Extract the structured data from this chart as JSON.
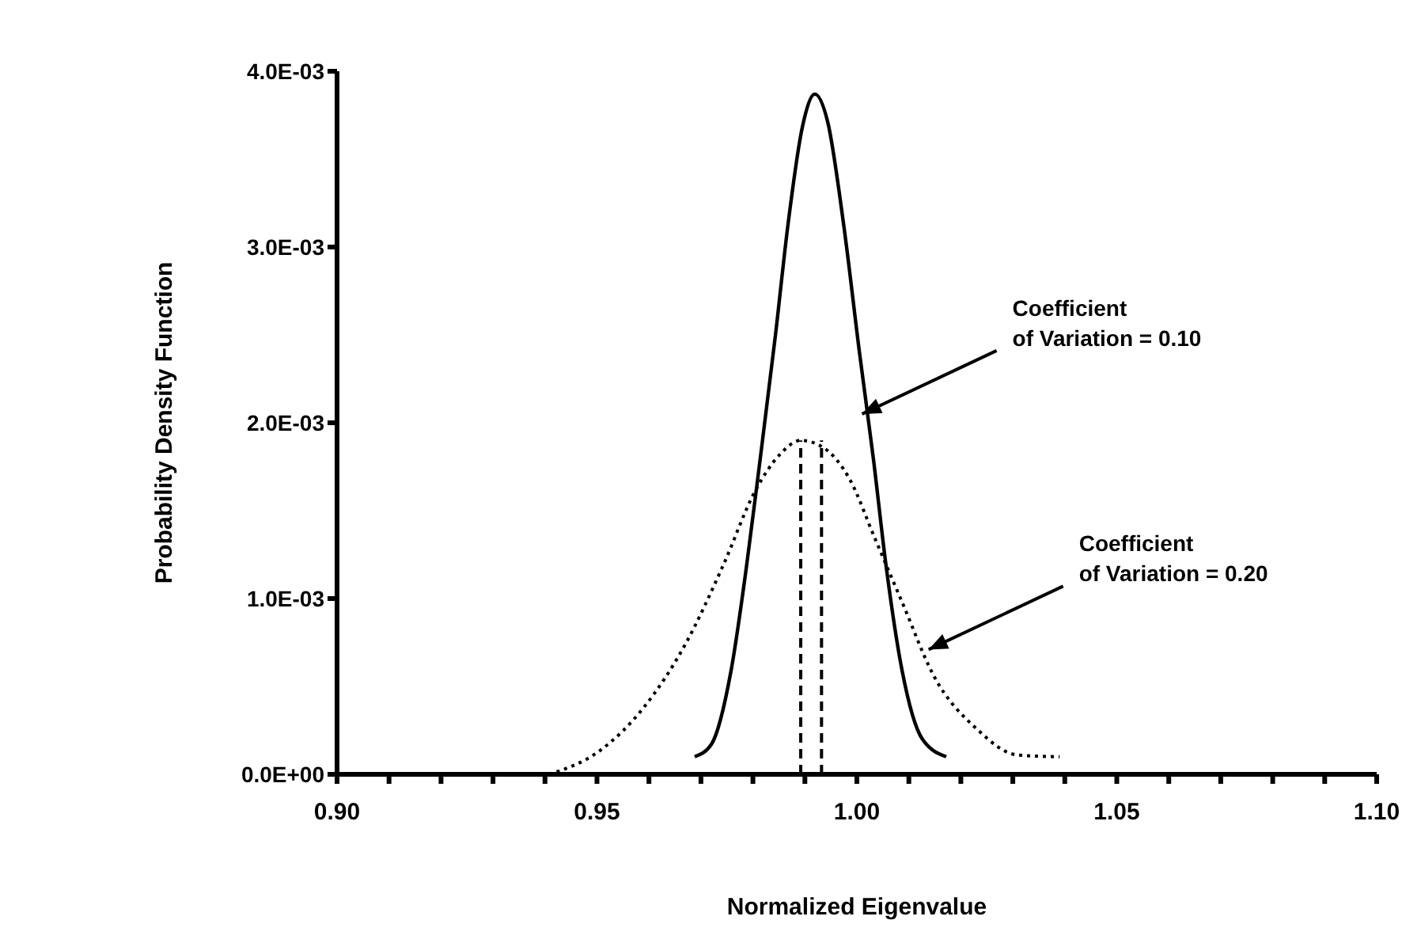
{
  "chart_data": {
    "type": "line",
    "xlabel": "Normalized Eigenvalue",
    "ylabel": "Probability Density Function",
    "xlim": [
      0.9,
      1.1
    ],
    "xticks": [
      {
        "value": 0.9,
        "label": "0.90"
      },
      {
        "value": 0.91,
        "label": null
      },
      {
        "value": 0.92,
        "label": null
      },
      {
        "value": 0.93,
        "label": null
      },
      {
        "value": 0.94,
        "label": null
      },
      {
        "value": 0.95,
        "label": "0.95"
      },
      {
        "value": 0.96,
        "label": null
      },
      {
        "value": 0.97,
        "label": null
      },
      {
        "value": 0.98,
        "label": null
      },
      {
        "value": 0.99,
        "label": null
      },
      {
        "value": 1.0,
        "label": "1.00"
      },
      {
        "value": 1.01,
        "label": null
      },
      {
        "value": 1.02,
        "label": null
      },
      {
        "value": 1.03,
        "label": null
      },
      {
        "value": 1.04,
        "label": null
      },
      {
        "value": 1.05,
        "label": "1.05"
      },
      {
        "value": 1.06,
        "label": null
      },
      {
        "value": 1.07,
        "label": null
      },
      {
        "value": 1.08,
        "label": null
      },
      {
        "value": 1.09,
        "label": null
      },
      {
        "value": 1.1,
        "label": "1.10"
      }
    ],
    "ylim": [
      0,
      0.004
    ],
    "yticks": [
      {
        "value": 0,
        "label": "0.0E+00"
      },
      {
        "value": 0.001,
        "label": "1.0E-03"
      },
      {
        "value": 0.002,
        "label": "2.0E-03"
      },
      {
        "value": 0.003,
        "label": "3.0E-03"
      },
      {
        "value": 0.004,
        "label": "4.0E-03"
      }
    ],
    "marker": "none",
    "series": [
      {
        "color": "#000000",
        "line_style": "solid",
        "x": [
          0.9688,
          0.972,
          0.9758,
          0.9788,
          0.9813,
          0.9843,
          0.9868,
          0.9895,
          0.9919,
          0.9944,
          0.9974,
          1.0005,
          1.0032,
          1.0056,
          1.0087,
          1.0126,
          1.0172
        ],
        "values": [
          0.0001,
          0.00017,
          0.00059,
          0.00119,
          0.00177,
          0.00249,
          0.00314,
          0.00368,
          0.00387,
          0.00371,
          0.00314,
          0.0024,
          0.00179,
          0.00119,
          0.00059,
          0.0002,
          0.0001
        ]
      },
      {
        "color": "#000000",
        "line_style": "dotted",
        "x": [
          0.9408,
          0.9508,
          0.959,
          0.967,
          0.9743,
          0.9804,
          0.9852,
          0.9892,
          0.9935,
          0.9986,
          1.0035,
          1.0087,
          1.0148,
          1.023,
          1.0309,
          1.039
        ],
        "values": [
          0,
          0.00014,
          0.00038,
          0.00074,
          0.00119,
          0.00161,
          0.00182,
          0.0019,
          0.00186,
          0.00168,
          0.00134,
          0.00098,
          0.00056,
          0.00026,
          0.00011,
          0.0001
        ]
      }
    ],
    "ref_lines": [
      {
        "axis": "x",
        "value": 0.9892,
        "line_style": "dashed",
        "color": "#000000"
      },
      {
        "axis": "x",
        "value": 0.9932,
        "line_style": "dashed",
        "color": "#000000"
      }
    ],
    "annotations": [
      {
        "text": "Coefficient\nof Variation = 0.10",
        "x": 1.001,
        "y": 0.00205
      },
      {
        "text": "Coefficient\nof Variation = 0.20",
        "x": 1.0138,
        "y": 0.00071
      }
    ]
  }
}
